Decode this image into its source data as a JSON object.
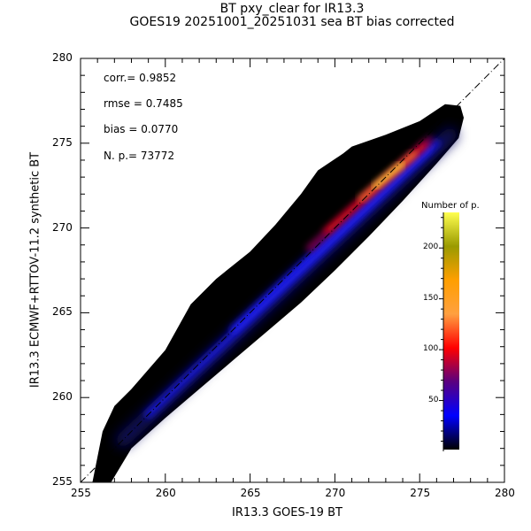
{
  "chart_data": {
    "type": "heatmap",
    "title": "BT pxy_clear for IR13.3",
    "subtitle": "GOES19 20251001_20251031 sea BT bias corrected",
    "xlabel": "IR13.3 GOES-19 BT",
    "ylabel": "IR13.3 ECMWF+RTTOV-11.2 synthetic BT",
    "xlim": [
      255,
      280
    ],
    "ylim": [
      255,
      280
    ],
    "xticks": [
      "255",
      "260",
      "265",
      "270",
      "275",
      "280"
    ],
    "yticks": [
      "255",
      "260",
      "265",
      "270",
      "275",
      "280"
    ],
    "stats": {
      "corr": "corr.= 0.9852",
      "rmse": "rmse = 0.7485",
      "bias": "bias = 0.0770",
      "np": "N. p.=    73772"
    },
    "colorbar": {
      "label": "Number of p.",
      "ticks": [
        "50",
        "100",
        "150",
        "200"
      ],
      "range": [
        0,
        235
      ],
      "colors": [
        "#000000",
        "#0000ff",
        "#5a0080",
        "#ff0000",
        "#ffa040",
        "#ff9f00",
        "#9a9a00",
        "#ffff50"
      ]
    },
    "reference_line": "y = x",
    "density_peak": {
      "x": 273,
      "y": 273
    }
  }
}
